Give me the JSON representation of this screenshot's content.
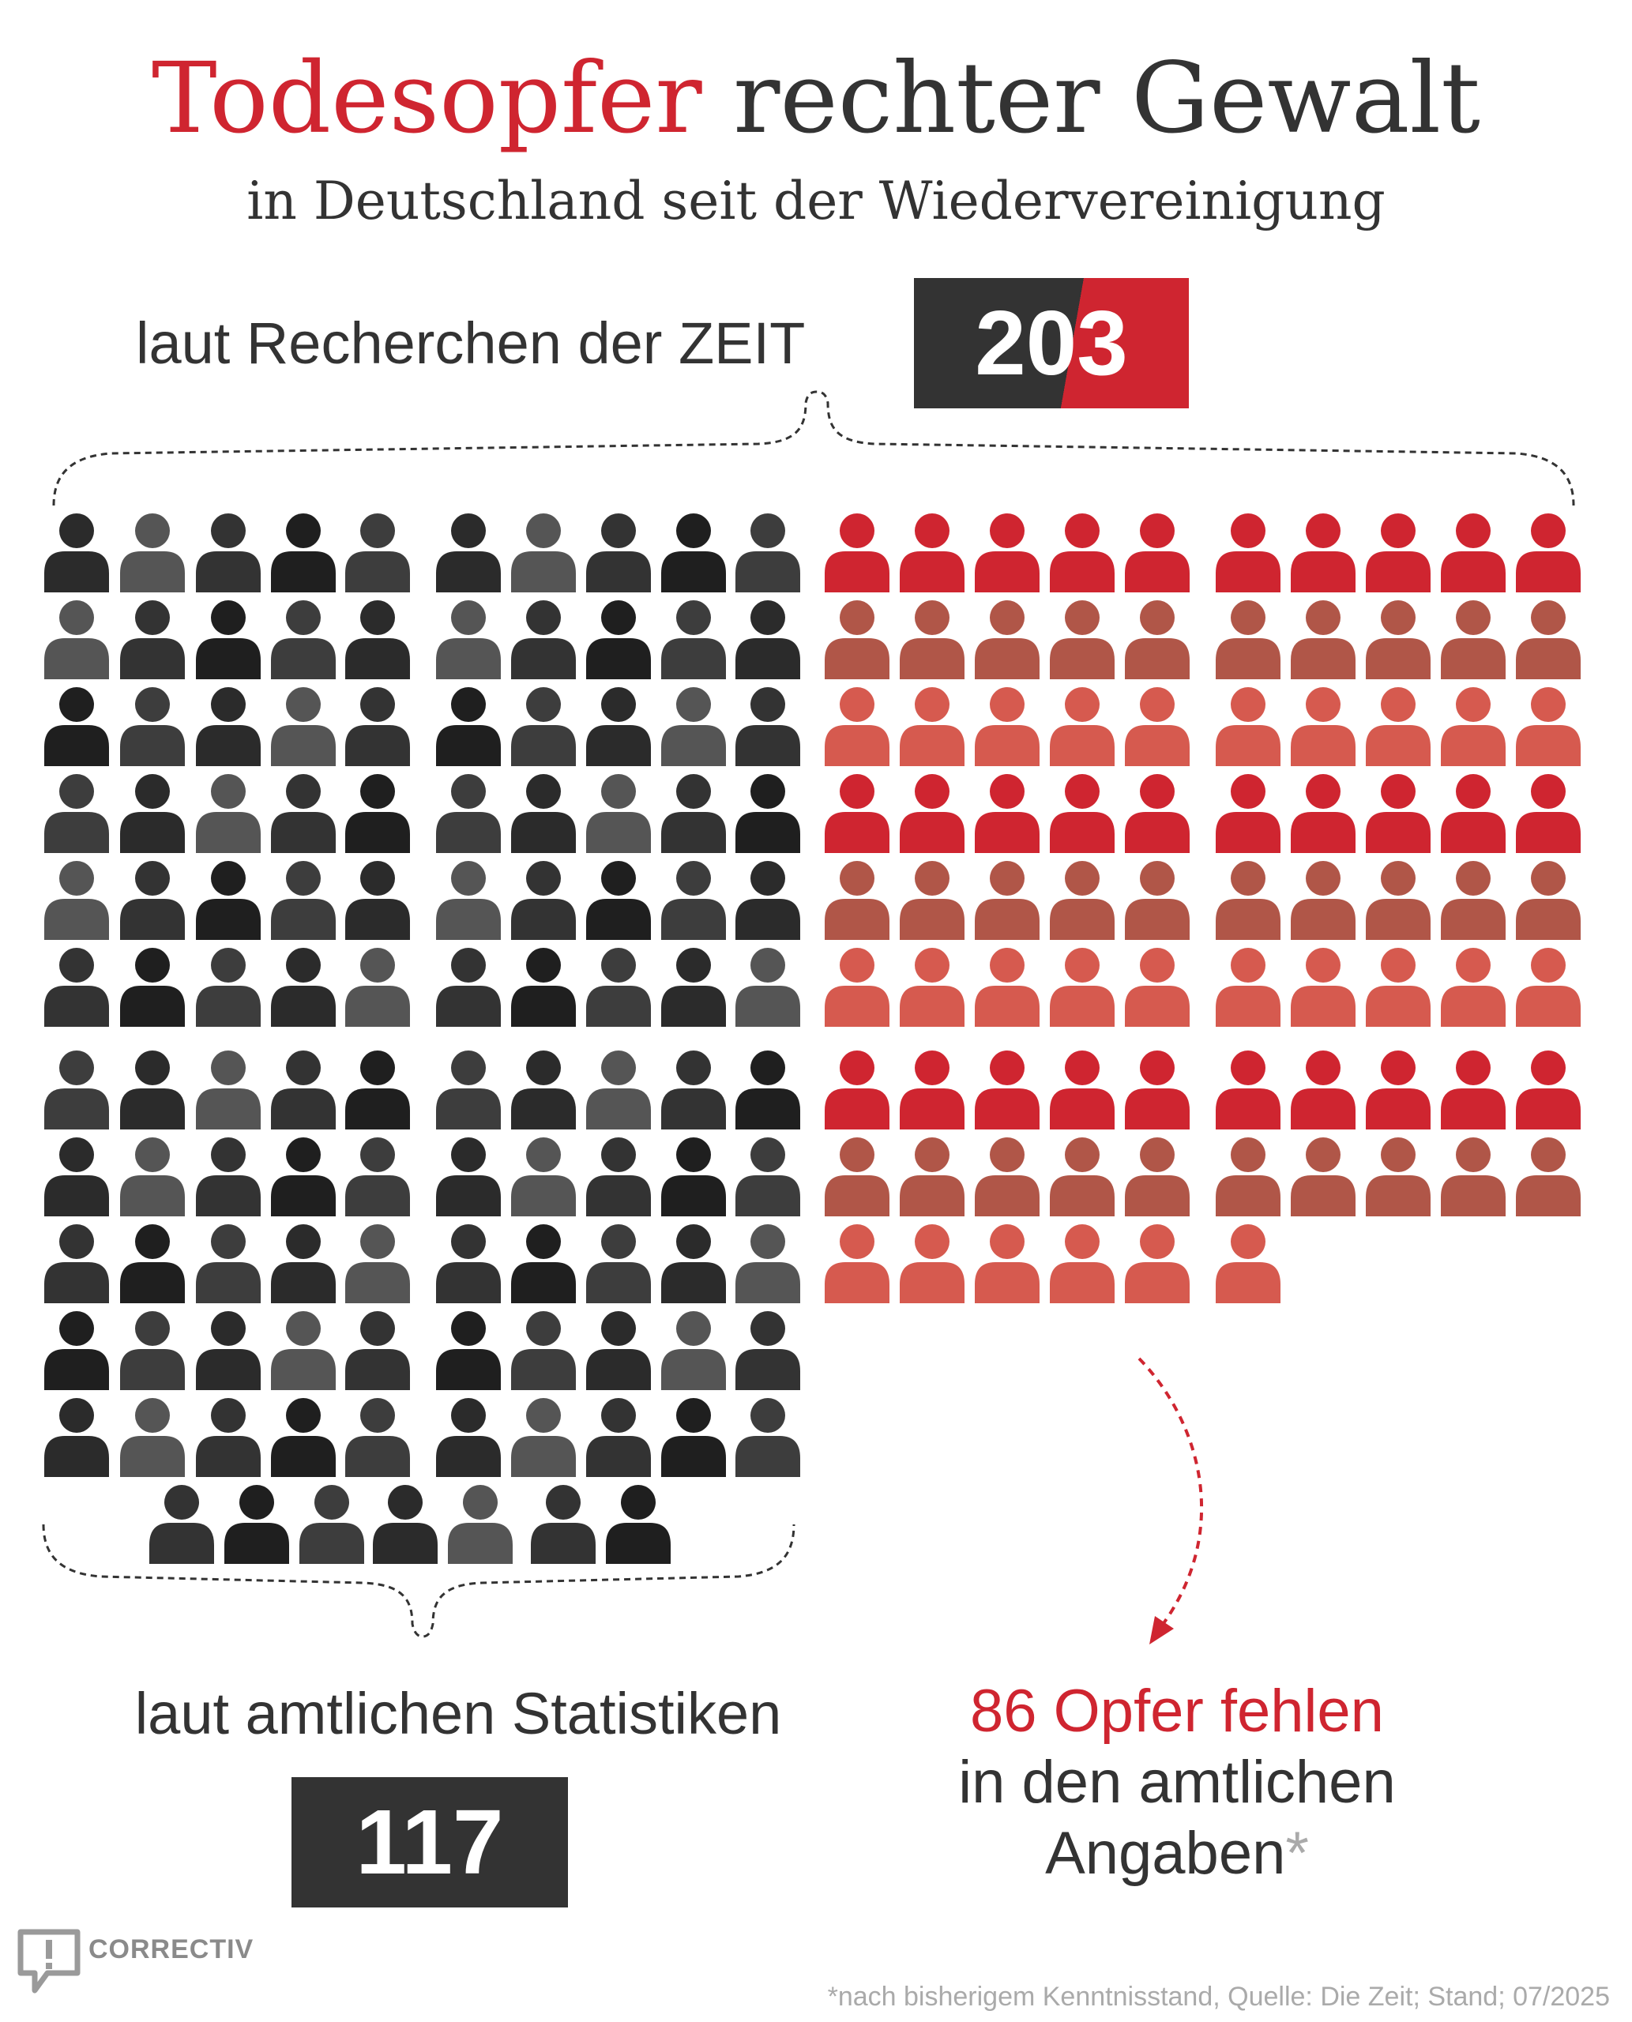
{
  "title": {
    "part1": "Todesopfer",
    "part2": "rechter Gewalt"
  },
  "subtitle": "in Deutschland seit der Wiedervereinigung",
  "zeit": {
    "label": "laut Recherchen der ZEIT",
    "total": "203"
  },
  "official": {
    "label": "laut amtlichen Statistiken",
    "total": "117"
  },
  "missing": {
    "line1": "86 Opfer fehlen",
    "line2": "in den amtlichen",
    "line3": "Angaben",
    "asterisk": "*"
  },
  "footnote": "*nach bisherigem Kenntnisstand, Quelle: Die Zeit; Stand; 07/2025",
  "logo": {
    "text": "CORRECTIV",
    "icon": "speech-bubble-exclamation-icon"
  },
  "colors": {
    "accent_red": "#cf2530",
    "dark": "#333333",
    "gray_shades": [
      "#2b2b2b",
      "#333333",
      "#3d3d3d",
      "#555555",
      "#1f1f1f"
    ],
    "red_shades": [
      "#cf2530",
      "#d65a4f",
      "#b05648"
    ]
  },
  "chart_data": {
    "type": "pictogram",
    "unit": "Todesopfer",
    "icon": "person-icon",
    "series": [
      {
        "name": "laut amtlichen Statistiken",
        "value": 117,
        "color": "#333333"
      },
      {
        "name": "86 Opfer fehlen in den amtlichen Angaben",
        "value": 86,
        "color": "#cf2530"
      }
    ],
    "total": 203
  }
}
